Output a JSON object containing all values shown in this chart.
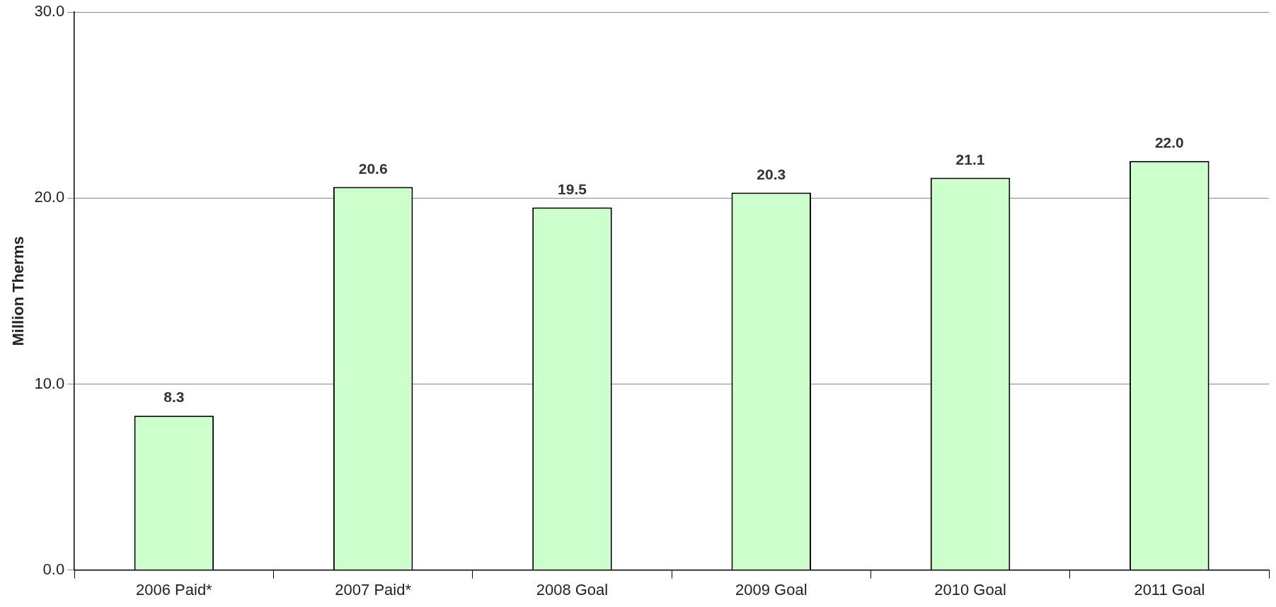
{
  "chart_data": {
    "type": "bar",
    "ylabel": "Million Therms",
    "categories": [
      "2006 Paid*",
      "2007 Paid*",
      "2008 Goal",
      "2009 Goal",
      "2010 Goal",
      "2011 Goal"
    ],
    "values": [
      8.3,
      20.6,
      19.5,
      20.3,
      21.1,
      22.0
    ],
    "value_labels": [
      "8.3",
      "20.6",
      "19.5",
      "20.3",
      "21.1",
      "22.0"
    ],
    "color": "#ccffcc",
    "ylim": [
      0,
      30
    ],
    "yticks": [
      {
        "value": 0,
        "label": "0.0"
      },
      {
        "value": 10,
        "label": "10.0"
      },
      {
        "value": 20,
        "label": "20.0"
      },
      {
        "value": 30,
        "label": "30.0"
      }
    ],
    "grid": "y",
    "legend": false
  }
}
